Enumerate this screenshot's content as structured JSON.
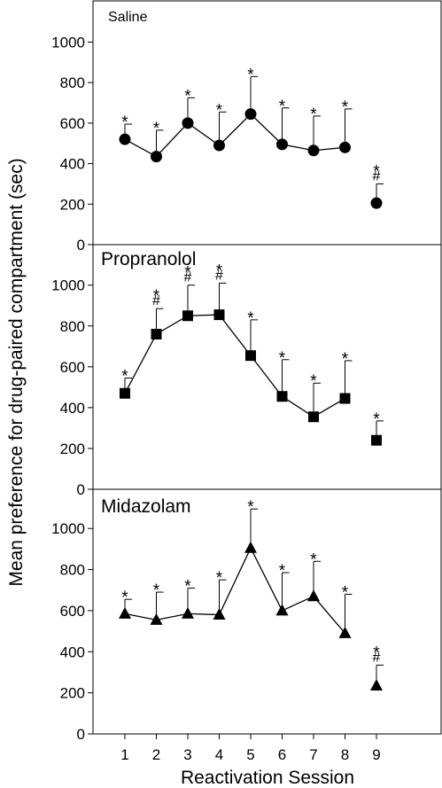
{
  "chart_data": {
    "type": "line",
    "ylabel": "Mean preference for drug-paired compartment (sec)",
    "xlabel": "Reactivation Session",
    "x_categories": [
      "1",
      "2",
      "3",
      "4",
      "5",
      "6",
      "7",
      "8",
      "9"
    ],
    "x_values": [
      1,
      2,
      3,
      4,
      5,
      6,
      7,
      8,
      9
    ],
    "connected_through": 8,
    "panels": [
      {
        "title": "Saline",
        "marker": "circle",
        "ylim": [
          0,
          1000
        ],
        "yticks": [
          "0",
          "200",
          "400",
          "600",
          "800",
          "1000"
        ],
        "values": [
          520,
          435,
          600,
          490,
          645,
          495,
          465,
          480,
          205
        ],
        "error_upper": [
          595,
          565,
          725,
          655,
          830,
          675,
          635,
          670,
          300
        ],
        "significance": [
          [
            "*"
          ],
          [
            "*"
          ],
          [
            "*"
          ],
          [
            "*"
          ],
          [
            "*"
          ],
          [
            "*"
          ],
          [
            "*"
          ],
          [
            "*"
          ],
          [
            "*",
            "#"
          ]
        ]
      },
      {
        "title": "Propranolol",
        "marker": "square",
        "ylim": [
          0,
          1000
        ],
        "yticks": [
          "0",
          "200",
          "400",
          "600",
          "800",
          "1000"
        ],
        "values": [
          470,
          760,
          850,
          855,
          655,
          455,
          355,
          445,
          240
        ],
        "error_upper": [
          545,
          885,
          1000,
          1010,
          830,
          635,
          520,
          630,
          335
        ],
        "significance": [
          [
            "*"
          ],
          [
            "*",
            "#"
          ],
          [
            "*",
            "#"
          ],
          [
            "*",
            "#"
          ],
          [
            "*"
          ],
          [
            "*"
          ],
          [
            "*"
          ],
          [
            "*"
          ],
          [
            "*"
          ]
        ]
      },
      {
        "title": "Midazolam",
        "marker": "triangle",
        "ylim": [
          0,
          1200
        ],
        "yticks": [
          "0",
          "200",
          "400",
          "600",
          "800",
          "1000"
        ],
        "values": [
          585,
          555,
          585,
          580,
          905,
          600,
          670,
          490,
          235
        ],
        "error_upper": [
          655,
          690,
          710,
          750,
          1095,
          785,
          840,
          680,
          335
        ],
        "significance": [
          [
            "*"
          ],
          [
            "*"
          ],
          [
            "*"
          ],
          [
            "*"
          ],
          [
            "*"
          ],
          [
            "*"
          ],
          [
            "*"
          ],
          [
            "*"
          ],
          [
            "*",
            "#"
          ]
        ]
      }
    ]
  }
}
